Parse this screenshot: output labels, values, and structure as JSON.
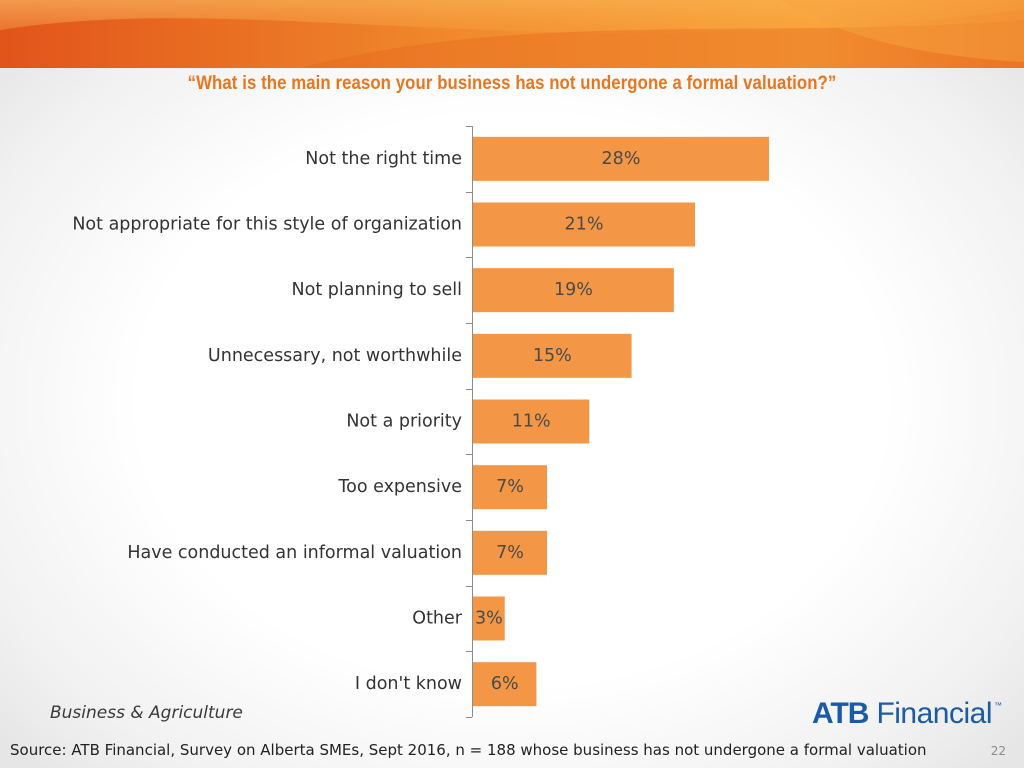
{
  "slide": {
    "question": "“What is the main reason your business has not undergone a formal valuation?”",
    "footer_section": "Business & Agriculture",
    "source": "Source:  ATB Financial, Survey on Alberta SMEs, Sept 2016, n = 188 whose business has not undergone a formal valuation",
    "page_number": "22",
    "logo": {
      "brand": "ATB",
      "name": "Financial",
      "tm": "™"
    }
  },
  "colors": {
    "bar": "#f39747",
    "header_dark": "#e2541a",
    "header_light": "#f7a23a",
    "question_text": "#e8761e",
    "logo_blue": "#1a5aa6"
  },
  "chart_data": {
    "type": "bar",
    "orientation": "horizontal",
    "title": "“What is the main reason your business has not undergone a formal valuation?”",
    "categories": [
      "Not the right time",
      "Not appropriate for this style of organization",
      "Not planning to sell",
      "Unnecessary, not worthwhile",
      "Not a priority",
      "Too expensive",
      "Have conducted an informal valuation",
      "Other",
      "I don't know"
    ],
    "values": [
      28,
      21,
      19,
      15,
      11,
      7,
      7,
      3,
      6
    ],
    "value_labels": [
      "28%",
      "21%",
      "19%",
      "15%",
      "11%",
      "7%",
      "7%",
      "3%",
      "6%"
    ],
    "unit": "%",
    "xlim": [
      0,
      50
    ],
    "grid": false,
    "legend": "none"
  }
}
